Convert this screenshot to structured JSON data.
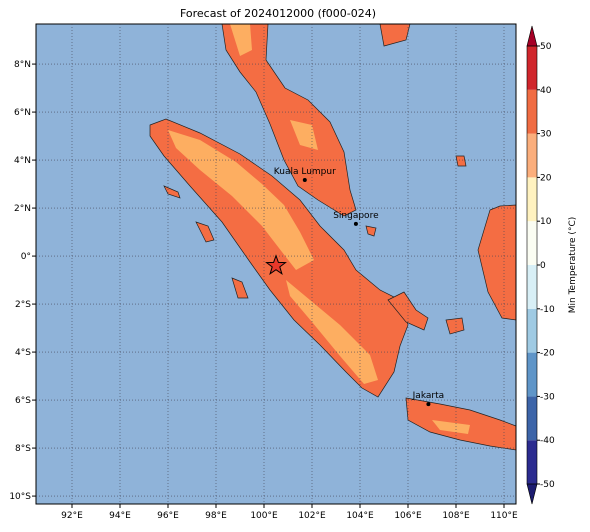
{
  "map": {
    "title": "Forecast of 2024012000 (f000-024)",
    "xlim": [
      90.5,
      110.5
    ],
    "ylim": [
      -10.33,
      9.67
    ],
    "xticks": [
      {
        "value": 92,
        "label": "92°E"
      },
      {
        "value": 94,
        "label": "94°E"
      },
      {
        "value": 96,
        "label": "96°E"
      },
      {
        "value": 98,
        "label": "98°E"
      },
      {
        "value": 100,
        "label": "100°E"
      },
      {
        "value": 102,
        "label": "102°E"
      },
      {
        "value": 104,
        "label": "104°E"
      },
      {
        "value": 106,
        "label": "106°E"
      },
      {
        "value": 108,
        "label": "108°E"
      },
      {
        "value": 110,
        "label": "110°E"
      }
    ],
    "yticks": [
      {
        "value": -10,
        "label": "10°S"
      },
      {
        "value": -8,
        "label": "8°S"
      },
      {
        "value": -6,
        "label": "6°S"
      },
      {
        "value": -4,
        "label": "4°S"
      },
      {
        "value": -2,
        "label": "2°S"
      },
      {
        "value": 0,
        "label": "0°"
      },
      {
        "value": 2,
        "label": "2°N"
      },
      {
        "value": 4,
        "label": "4°N"
      },
      {
        "value": 6,
        "label": "6°N"
      },
      {
        "value": 8,
        "label": "8°N"
      }
    ],
    "grid": true,
    "cities": [
      {
        "name": "Kuala Lumpur",
        "lon": 101.7,
        "lat": 3.17
      },
      {
        "name": "Singapore",
        "lon": 103.83,
        "lat": 1.34
      },
      {
        "name": "Jakarta",
        "lon": 106.85,
        "lat": -6.17
      }
    ],
    "marker": {
      "lon": 100.5,
      "lat": -0.4,
      "color": "#e8382a"
    }
  },
  "colorbar": {
    "label": "Min Temperature (°C)",
    "lim": [
      -50,
      50
    ],
    "ticks": [
      -50,
      -40,
      -30,
      -20,
      -10,
      0,
      10,
      20,
      30,
      40,
      50
    ],
    "colors": [
      "#2b2b8f",
      "#3c64a8",
      "#5f95c8",
      "#9fcae3",
      "#d8eff6",
      "#fbfdf3",
      "#fff2c0",
      "#fbae7c",
      "#f06c43",
      "#d0262c"
    ],
    "under": "#1c1c70",
    "over": "#a50026"
  }
}
